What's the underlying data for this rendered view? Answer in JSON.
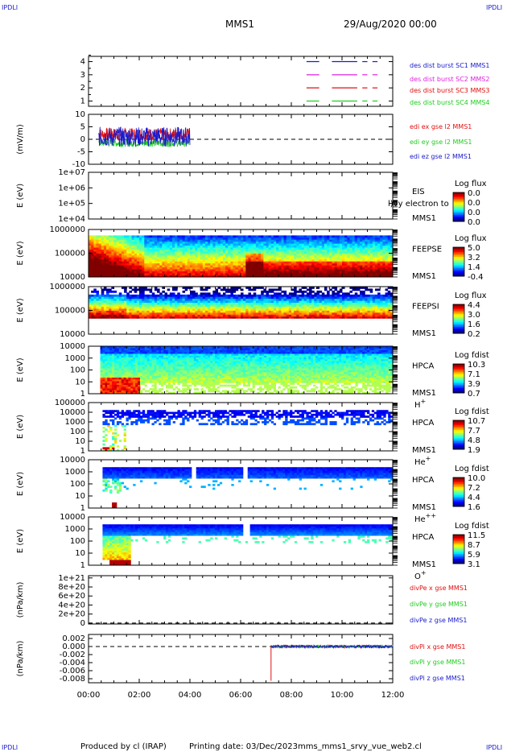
{
  "header": {
    "corner_tl": "IPDLI",
    "corner_tr": "IPDLI",
    "corner_bl": "IPDLI",
    "corner_br": "IPDLI",
    "mission": "MMS1",
    "date": "29/Aug/2020 00:00"
  },
  "footer": {
    "produced_by": "Produced by cl (IRAP)",
    "printing_date": "Printing date: 03/Dec/2023",
    "script": "mms_mms1_srvy_vue_web2.cl"
  },
  "colors": {
    "blue": "#1a1acc",
    "red": "#e01010",
    "magenta": "#dd22dd",
    "green": "#22cc22",
    "dark_red": "#cc0000"
  },
  "chart_data": [
    {
      "type": "line",
      "panel": "burst-intervals",
      "ylabel": "",
      "ylim": [
        0.6,
        4.4
      ],
      "yticks": [
        "1",
        "2",
        "3",
        "4"
      ],
      "series": [
        {
          "name": "des dist burst SC1 MMS1",
          "color": "#1a1acc",
          "level": 1,
          "segments": [
            [
              8.6,
              9.1
            ],
            [
              9.6,
              10.6
            ],
            [
              10.8,
              11.0
            ],
            [
              11.2,
              11.4
            ]
          ]
        },
        {
          "name": "des dist burst SC2 MMS2",
          "color": "#dd22dd",
          "level": 2,
          "segments": [
            [
              8.6,
              9.1
            ],
            [
              9.6,
              10.6
            ],
            [
              10.8,
              11.0
            ],
            [
              11.2,
              11.4
            ]
          ]
        },
        {
          "name": "des dist burst SC3 MMS3",
          "color": "#e01010",
          "level": 3,
          "segments": [
            [
              8.6,
              9.1
            ],
            [
              9.6,
              10.6
            ],
            [
              10.8,
              11.0
            ],
            [
              11.2,
              11.4
            ]
          ]
        },
        {
          "name": "des dist burst SC4 MMS4",
          "color": "#22cc22",
          "level": 4,
          "segments": [
            [
              8.6,
              9.1
            ],
            [
              9.6,
              10.6
            ],
            [
              10.8,
              11.0
            ],
            [
              11.2,
              11.4
            ]
          ]
        }
      ]
    },
    {
      "type": "line",
      "panel": "edi-e-field",
      "ylabel": "(mV/m)",
      "ylim": [
        -10,
        10
      ],
      "yticks": [
        "-10",
        "-5",
        "0",
        "5",
        "10"
      ],
      "x_range": [
        0.4,
        4.0
      ],
      "series": [
        {
          "name": "edi ex gse l2 MMS1",
          "color": "#e01010",
          "mean": 2.0,
          "spread": 2.5
        },
        {
          "name": "edi ey gse l2 MMS1",
          "color": "#22cc22",
          "mean": -1.5,
          "spread": 1.5
        },
        {
          "name": "edi ez gse l2 MMS1",
          "color": "#1a1acc",
          "mean": 1.0,
          "spread": 4.0
        }
      ],
      "zero_line": true
    },
    {
      "type": "heatmap",
      "panel": "eis",
      "ylabel": "E (eV)",
      "yticks": [
        "1e+04",
        "1e+05",
        "1e+06",
        "1e+07"
      ],
      "instrument": [
        "EIS",
        "MMS1"
      ],
      "overlay_text": "l)vy electron to",
      "colorbar_title": "Log flux",
      "colorbar_ticks": [
        "0.0",
        "0.0",
        "0.0",
        "0.0"
      ]
    },
    {
      "type": "heatmap",
      "panel": "feeps-electron",
      "ylabel": "E (eV)",
      "yticks": [
        "10000",
        "100000",
        "1000000"
      ],
      "instrument": [
        "FEEPSE",
        "MMS1"
      ],
      "colorbar_title": "Log flux",
      "colorbar_ticks": [
        "5.0",
        "3.2",
        "1.4",
        "-0.4"
      ]
    },
    {
      "type": "heatmap",
      "panel": "feeps-ion",
      "ylabel": "E (eV)",
      "yticks": [
        "10000",
        "100000",
        "1000000"
      ],
      "instrument": [
        "FEEPSI",
        "MMS1"
      ],
      "colorbar_title": "Log flux",
      "colorbar_ticks": [
        "4.4",
        "3.0",
        "1.6",
        "0.2"
      ]
    },
    {
      "type": "heatmap",
      "panel": "hpca-h",
      "ylabel": "E (eV)",
      "yticks": [
        "1",
        "10",
        "100",
        "1000",
        "10000"
      ],
      "instrument": [
        "HPCA",
        "MMS1"
      ],
      "species": "H",
      "charge": "+",
      "colorbar_title": "Log fdist",
      "colorbar_ticks": [
        "10.3",
        "7.1",
        "3.9",
        "0.7"
      ]
    },
    {
      "type": "heatmap",
      "panel": "hpca-he",
      "ylabel": "E (eV)",
      "yticks": [
        "1",
        "10",
        "100",
        "1000",
        "10000",
        "100000"
      ],
      "instrument": [
        "HPCA",
        "MMS1"
      ],
      "species": "He",
      "charge": "+",
      "colorbar_title": "Log fdist",
      "colorbar_ticks": [
        "10.7",
        "7.7",
        "4.8",
        "1.9"
      ]
    },
    {
      "type": "heatmap",
      "panel": "hpca-hepp",
      "ylabel": "E (eV)",
      "yticks": [
        "1",
        "10",
        "100",
        "1000",
        "10000"
      ],
      "instrument": [
        "HPCA",
        "MMS1"
      ],
      "species": "He",
      "charge": "++",
      "colorbar_title": "Log fdist",
      "colorbar_ticks": [
        "10.0",
        "7.2",
        "4.4",
        "1.6"
      ]
    },
    {
      "type": "heatmap",
      "panel": "hpca-o",
      "ylabel": "E (eV)",
      "yticks": [
        "1",
        "10",
        "100",
        "1000",
        "10000"
      ],
      "instrument": [
        "HPCA",
        "MMS1"
      ],
      "species": "O",
      "charge": "+",
      "colorbar_title": "Log fdist",
      "colorbar_ticks": [
        "11.5",
        "8.7",
        "5.9",
        "3.1"
      ]
    },
    {
      "type": "line",
      "panel": "div-pe",
      "ylabel": "(nPa/km)",
      "ylim": [
        -2e+19,
        1.05e+21
      ],
      "yticks": [
        "0",
        "2e+20",
        "4e+20",
        "6e+20",
        "8e+20",
        "1e+21"
      ],
      "series": [
        {
          "name": "divPe x gse MMS1",
          "color": "#e01010"
        },
        {
          "name": "divPe y gse MMS1",
          "color": "#22cc22"
        },
        {
          "name": "divPe z gse MMS1",
          "color": "#1a1acc"
        }
      ],
      "zero_line": true
    },
    {
      "type": "line",
      "panel": "div-pi",
      "ylabel": "(nPa/km)",
      "ylim": [
        -0.009,
        0.003
      ],
      "yticks": [
        "-0.008",
        "-0.006",
        "-0.004",
        "-0.002",
        "0.000",
        "0.002"
      ],
      "x_range": [
        7.2,
        12.0
      ],
      "series": [
        {
          "name": "divPi x gse MMS1",
          "color": "#e01010"
        },
        {
          "name": "divPi y gse MMS1",
          "color": "#22cc22"
        },
        {
          "name": "divPi z gse MMS1",
          "color": "#1a1acc"
        }
      ],
      "zero_line": true
    }
  ],
  "time_axis": {
    "range_hours": [
      0,
      12
    ],
    "tick_labels": [
      "00:00",
      "02:00",
      "04:00",
      "06:00",
      "08:00",
      "10:00",
      "12:00"
    ]
  }
}
